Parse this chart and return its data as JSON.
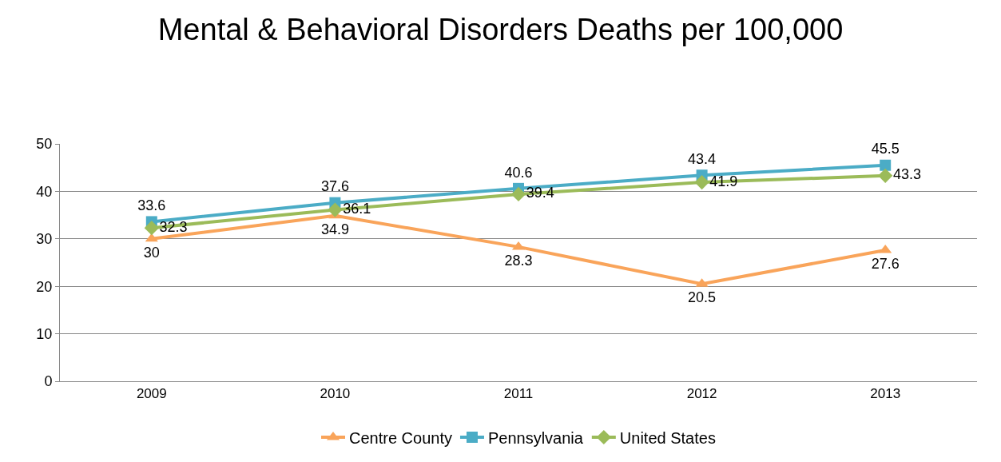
{
  "chart_data": {
    "type": "line",
    "title": "Mental & Behavioral Disorders Deaths per 100,000",
    "categories": [
      "2009",
      "2010",
      "2011",
      "2012",
      "2013"
    ],
    "series": [
      {
        "name": "Centre County",
        "color": "#f9a45a",
        "marker": "triangle",
        "values": [
          30,
          34.9,
          28.3,
          20.5,
          27.6
        ]
      },
      {
        "name": "Pennsylvania",
        "color": "#4bacc6",
        "marker": "square",
        "values": [
          33.6,
          37.6,
          40.6,
          43.4,
          45.5
        ]
      },
      {
        "name": "United States",
        "color": "#9bbb59",
        "marker": "diamond",
        "values": [
          32.3,
          36.1,
          39.4,
          41.9,
          43.3
        ]
      }
    ],
    "ylim": [
      0,
      50
    ],
    "yticks": [
      0,
      10,
      20,
      30,
      40,
      50
    ],
    "grid": "y",
    "legend": "bottom",
    "data_labels": true,
    "line_style": "solid"
  }
}
